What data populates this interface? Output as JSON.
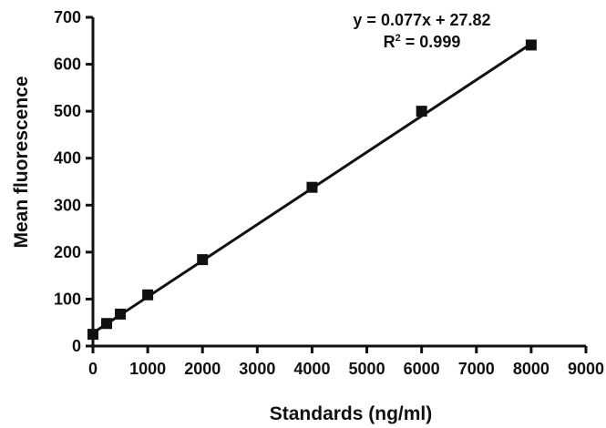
{
  "chart_data": {
    "type": "scatter",
    "title": "",
    "xlabel": "Standards (ng/ml)",
    "ylabel": "Mean fluorescence",
    "xlim": [
      0,
      9000
    ],
    "ylim": [
      0,
      700
    ],
    "x_ticks": [
      0,
      1000,
      2000,
      3000,
      4000,
      5000,
      6000,
      7000,
      8000,
      9000
    ],
    "y_ticks": [
      0,
      100,
      200,
      300,
      400,
      500,
      600,
      700
    ],
    "x_tick_labels": [
      "0",
      "1000",
      "2000",
      "3000",
      "4000",
      "5000",
      "6000",
      "7000",
      "8000",
      "9000"
    ],
    "y_tick_labels": [
      "0",
      "100",
      "200",
      "300",
      "400",
      "500",
      "600",
      "700"
    ],
    "grid": false,
    "legend": "none",
    "series": [
      {
        "marker": "square",
        "color": "#111111",
        "points": [
          {
            "x": 0,
            "y": 25
          },
          {
            "x": 250,
            "y": 48
          },
          {
            "x": 500,
            "y": 68
          },
          {
            "x": 1000,
            "y": 109
          },
          {
            "x": 2000,
            "y": 184
          },
          {
            "x": 4000,
            "y": 338
          },
          {
            "x": 6000,
            "y": 500
          },
          {
            "x": 8000,
            "y": 641
          }
        ]
      }
    ],
    "fit_line": {
      "slope": 0.077,
      "intercept": 27.82,
      "x_range": [
        0,
        8000
      ],
      "color": "#111111"
    },
    "annotations": {
      "equation": "y = 0.077x + 27.82",
      "r2_prefix": "R",
      "r2_sup": "2",
      "r2_value": " = 0.999"
    }
  }
}
